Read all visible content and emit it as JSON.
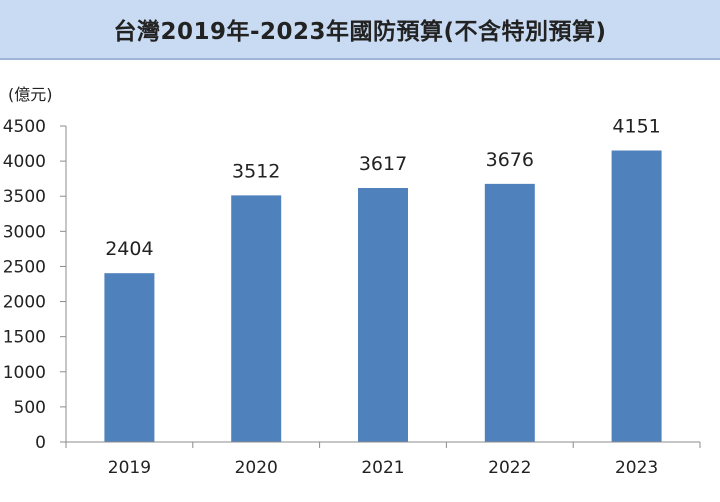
{
  "title": "台灣2019年-2023年國防預算(不含特別預算)",
  "colors": {
    "bar": "#4f81bd",
    "title_bg": "#c9dbf2",
    "axis": "#8c8c8c"
  },
  "chart_data": {
    "type": "bar",
    "title": "台灣2019年-2023年國防預算(不含特別預算)",
    "unit_label": "(億元)",
    "categories": [
      "2019",
      "2020",
      "2021",
      "2022",
      "2023"
    ],
    "values": [
      2404,
      3512,
      3617,
      3676,
      4151
    ],
    "data_labels": [
      "2404",
      "3512",
      "3617",
      "3676",
      "4151"
    ],
    "ylim": [
      0,
      4500
    ],
    "yticks": [
      "0",
      "500",
      "1000",
      "1500",
      "2000",
      "2500",
      "3000",
      "3500",
      "4000",
      "4500"
    ],
    "grid": false,
    "legend": "none"
  }
}
